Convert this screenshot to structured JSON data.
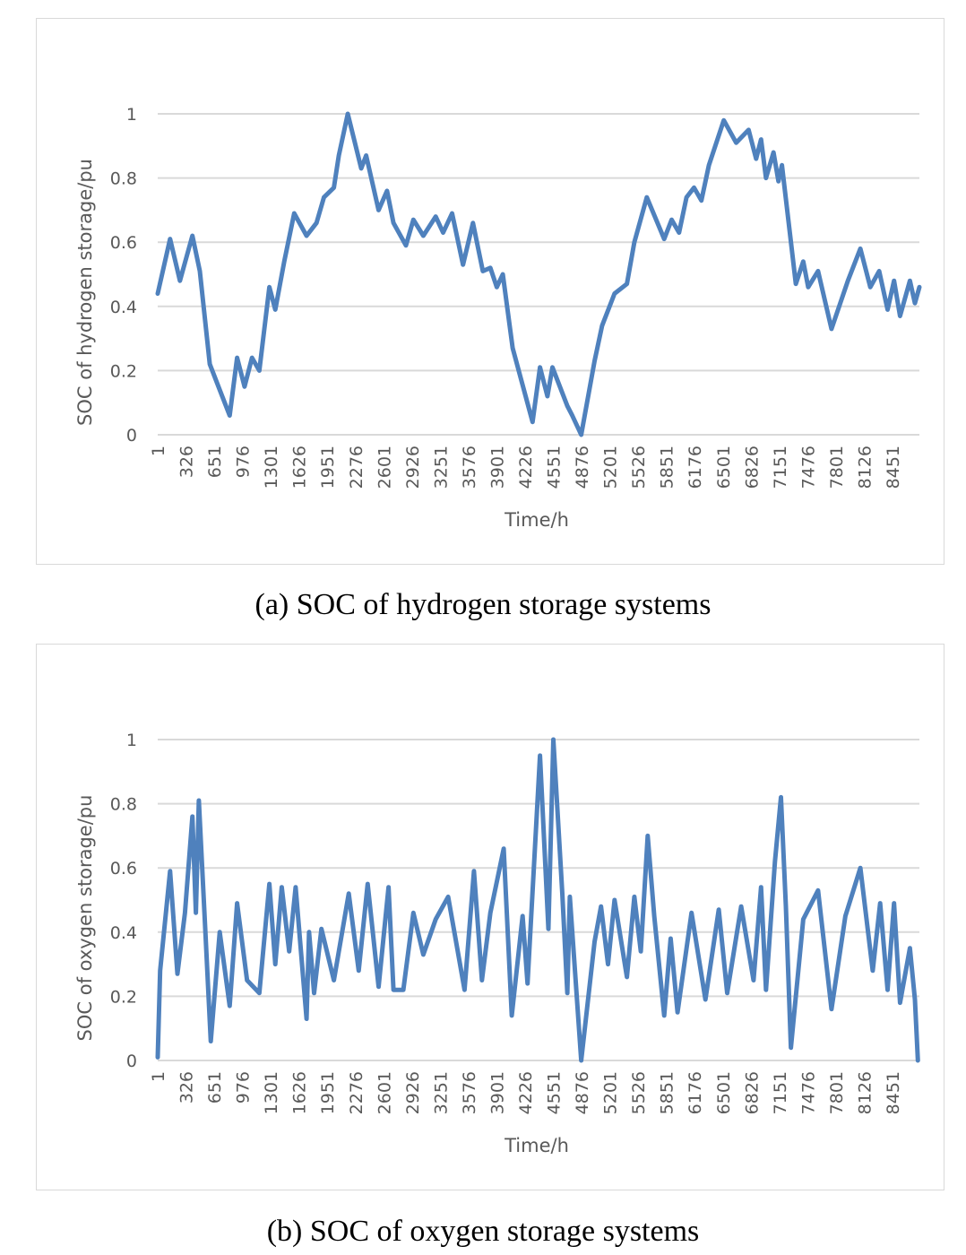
{
  "colors": {
    "line": "#4f81bd",
    "grid": "#d9d9d9",
    "text": "#595959"
  },
  "chart_data": [
    {
      "type": "line",
      "title": "(a) SOC of hydrogen storage systems",
      "xlabel": "Time/h",
      "ylabel": "SOC of hydrogen storage/pu",
      "ylim": [
        0,
        1
      ],
      "xlim": [
        1,
        8760
      ],
      "grid": true,
      "yticks": [
        "0",
        "0.2",
        "0.4",
        "0.6",
        "0.8",
        "1"
      ],
      "xticks": [
        "1",
        "326",
        "651",
        "976",
        "1301",
        "1626",
        "1951",
        "2276",
        "2601",
        "2926",
        "3251",
        "3576",
        "3901",
        "4226",
        "4551",
        "4876",
        "5201",
        "5526",
        "5851",
        "6176",
        "6501",
        "6826",
        "7151",
        "7476",
        "7801",
        "8126",
        "8451"
      ],
      "series": [
        {
          "name": "SOC",
          "x": [
            1,
            143,
            257,
            400,
            485,
            600,
            685,
            828,
            914,
            1000,
            1085,
            1170,
            1285,
            1353,
            1456,
            1570,
            1713,
            1827,
            1913,
            2027,
            2084,
            2187,
            2341,
            2398,
            2541,
            2638,
            2712,
            2855,
            2941,
            3055,
            3198,
            3283,
            3386,
            3512,
            3626,
            3740,
            3826,
            3900,
            3969,
            4083,
            4311,
            4397,
            4483,
            4540,
            4711,
            4768,
            4871,
            5025,
            5111,
            5254,
            5397,
            5482,
            5625,
            5825,
            5911,
            5996,
            6082,
            6168,
            6253,
            6339,
            6510,
            6653,
            6796,
            6882,
            6939,
            6996,
            7082,
            7139,
            7179,
            7339,
            7425,
            7481,
            7595,
            7749,
            7938,
            8081,
            8195,
            8297,
            8394,
            8468,
            8537,
            8651,
            8708,
            8760
          ],
          "y": [
            0.44,
            0.61,
            0.48,
            0.62,
            0.51,
            0.22,
            0.16,
            0.06,
            0.24,
            0.15,
            0.24,
            0.2,
            0.46,
            0.39,
            0.54,
            0.69,
            0.62,
            0.66,
            0.74,
            0.77,
            0.87,
            1.0,
            0.83,
            0.87,
            0.7,
            0.76,
            0.66,
            0.59,
            0.67,
            0.62,
            0.68,
            0.63,
            0.69,
            0.53,
            0.66,
            0.51,
            0.52,
            0.46,
            0.5,
            0.27,
            0.04,
            0.21,
            0.12,
            0.21,
            0.09,
            0.06,
            0.0,
            0.23,
            0.34,
            0.44,
            0.47,
            0.6,
            0.74,
            0.61,
            0.67,
            0.63,
            0.74,
            0.77,
            0.73,
            0.84,
            0.98,
            0.91,
            0.95,
            0.86,
            0.92,
            0.8,
            0.88,
            0.79,
            0.84,
            0.47,
            0.54,
            0.46,
            0.51,
            0.33,
            0.48,
            0.58,
            0.46,
            0.51,
            0.39,
            0.48,
            0.37,
            0.48,
            0.41,
            0.46
          ]
        }
      ]
    },
    {
      "type": "line",
      "title": "(b) SOC of oxygen storage systems",
      "xlabel": "Time/h",
      "ylabel": "SOC of oxygen storage/pu",
      "ylim": [
        0,
        1
      ],
      "xlim": [
        1,
        8760
      ],
      "grid": true,
      "yticks": [
        "0",
        "0.2",
        "0.4",
        "0.6",
        "0.8",
        "1"
      ],
      "xticks": [
        "1",
        "326",
        "651",
        "976",
        "1301",
        "1626",
        "1951",
        "2276",
        "2601",
        "2926",
        "3251",
        "3576",
        "3901",
        "4226",
        "4551",
        "4876",
        "5201",
        "5526",
        "5851",
        "6176",
        "6501",
        "6826",
        "7151",
        "7476",
        "7801",
        "8126",
        "8451"
      ],
      "series": [
        {
          "name": "SOC",
          "x": [
            1,
            29,
            143,
            228,
            314,
            400,
            440,
            474,
            542,
            611,
            714,
            828,
            914,
            1028,
            1170,
            1285,
            1353,
            1427,
            1513,
            1587,
            1713,
            1741,
            1799,
            1884,
            2027,
            2198,
            2312,
            2415,
            2541,
            2655,
            2712,
            2826,
            2941,
            3055,
            3198,
            3341,
            3529,
            3638,
            3729,
            3826,
            3980,
            4072,
            4197,
            4254,
            4397,
            4494,
            4551,
            4654,
            4711,
            4740,
            4871,
            5025,
            5099,
            5179,
            5254,
            5397,
            5482,
            5556,
            5636,
            5711,
            5825,
            5899,
            5979,
            6139,
            6299,
            6453,
            6550,
            6710,
            6853,
            6939,
            6996,
            7099,
            7168,
            7225,
            7282,
            7425,
            7595,
            7749,
            7909,
            8081,
            8223,
            8309,
            8394,
            8468,
            8537,
            8651,
            8708,
            8742
          ],
          "y": [
            0.01,
            0.28,
            0.59,
            0.27,
            0.46,
            0.76,
            0.46,
            0.81,
            0.44,
            0.06,
            0.4,
            0.17,
            0.49,
            0.25,
            0.21,
            0.55,
            0.3,
            0.54,
            0.34,
            0.54,
            0.13,
            0.4,
            0.21,
            0.41,
            0.25,
            0.52,
            0.28,
            0.55,
            0.23,
            0.54,
            0.22,
            0.22,
            0.46,
            0.33,
            0.44,
            0.51,
            0.22,
            0.59,
            0.25,
            0.46,
            0.66,
            0.14,
            0.45,
            0.24,
            0.95,
            0.41,
            1.0,
            0.52,
            0.21,
            0.51,
            0.0,
            0.37,
            0.48,
            0.3,
            0.5,
            0.26,
            0.51,
            0.34,
            0.7,
            0.45,
            0.14,
            0.38,
            0.15,
            0.46,
            0.19,
            0.47,
            0.21,
            0.48,
            0.25,
            0.54,
            0.22,
            0.62,
            0.82,
            0.48,
            0.04,
            0.44,
            0.53,
            0.16,
            0.45,
            0.6,
            0.28,
            0.49,
            0.22,
            0.49,
            0.18,
            0.35,
            0.19,
            0.0
          ]
        }
      ]
    }
  ]
}
